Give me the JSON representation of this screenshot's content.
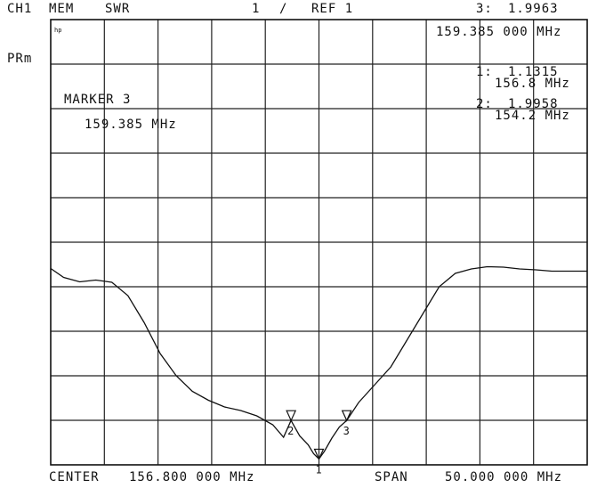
{
  "header": {
    "channel": "CH1",
    "memory": "MEM",
    "format": "SWR",
    "scale": "1",
    "slash": "/",
    "reference": "REF 1",
    "active_marker_label": "3:",
    "active_marker_value": "1.9963",
    "active_marker_freq": "159.385 000 MHz"
  },
  "side_label": "PRm",
  "hp_logo": "hp",
  "marker_box": {
    "title": "MARKER 3",
    "freq": "159.385 MHz"
  },
  "marker_list": [
    {
      "label": "1:",
      "value": "1.1315",
      "freq": "156.8 MHz"
    },
    {
      "label": "2:",
      "value": "1.9958",
      "freq": "154.2 MHz"
    }
  ],
  "footer": {
    "center_label": "CENTER",
    "center_value": "156.800 000 MHz",
    "span_label": "SPAN",
    "span_value": "50.000 000 MHz"
  },
  "chart_data": {
    "type": "line",
    "xlim": [
      131.8,
      181.8
    ],
    "ylim": [
      1.0,
      11.0
    ],
    "grid": true,
    "series": [
      {
        "x": [
          131.8,
          133.0,
          134.5,
          136.0,
          137.5,
          139.0,
          140.5,
          142.0,
          143.5,
          145.0,
          146.5,
          148.0,
          149.5,
          151.0,
          152.5,
          153.5,
          154.2,
          155.0,
          155.8,
          156.3,
          156.8,
          157.3,
          158.0,
          158.7,
          159.385,
          160.5,
          162.0,
          163.5,
          165.0,
          166.5,
          168.0,
          169.5,
          171.0,
          172.5,
          174.0,
          175.5,
          177.0,
          178.5,
          180.0,
          181.8
        ],
        "y": [
          5.41,
          5.21,
          5.11,
          5.15,
          5.1,
          4.8,
          4.2,
          3.5,
          3.0,
          2.65,
          2.45,
          2.3,
          2.22,
          2.1,
          1.9,
          1.62,
          1.9958,
          1.65,
          1.45,
          1.25,
          1.1315,
          1.3,
          1.6,
          1.85,
          1.9963,
          2.4,
          2.8,
          3.2,
          3.8,
          4.4,
          5.0,
          5.3,
          5.4,
          5.45,
          5.44,
          5.4,
          5.38,
          5.35,
          5.35,
          5.35
        ]
      }
    ],
    "markers": [
      {
        "id": "1",
        "x": 156.8,
        "y": 1.1315
      },
      {
        "id": "2",
        "x": 154.2,
        "y": 1.9958
      },
      {
        "id": "3",
        "x": 159.385,
        "y": 1.9963
      }
    ]
  }
}
